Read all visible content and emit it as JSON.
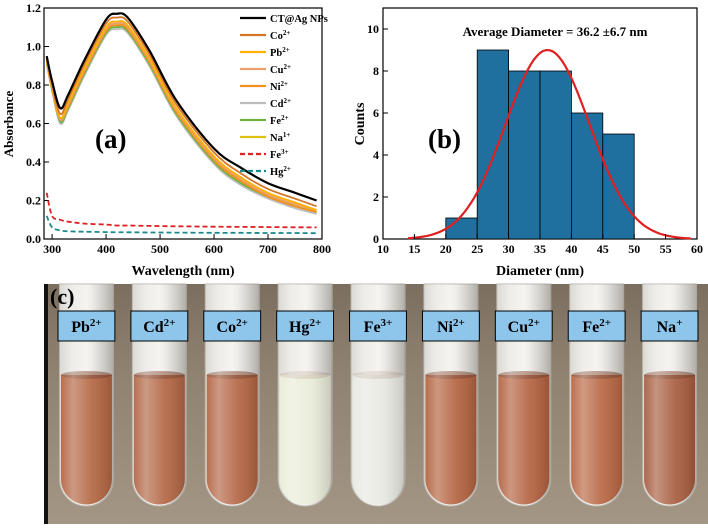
{
  "chart_data": [
    {
      "type": "line",
      "panel_label": "(a)",
      "xlabel": "Wavelength (nm)",
      "ylabel": "Absorbance",
      "xlim": [
        285,
        800
      ],
      "ylim": [
        0,
        1.2
      ],
      "x_ticks": [
        "300",
        "400",
        "500",
        "600",
        "700",
        "800"
      ],
      "y_ticks": [
        "0.0",
        "0.2",
        "0.4",
        "0.6",
        "0.8",
        "1.0",
        "1.2"
      ],
      "x": [
        290,
        300,
        315,
        330,
        360,
        400,
        420,
        440,
        480,
        530,
        600,
        650,
        700,
        750,
        790
      ],
      "series": [
        {
          "name": "CT@Ag NPs",
          "ion": "",
          "charge": "",
          "color": "#000000",
          "dash": false,
          "values": [
            0.95,
            0.82,
            0.68,
            0.75,
            0.93,
            1.14,
            1.17,
            1.15,
            0.98,
            0.72,
            0.47,
            0.37,
            0.29,
            0.24,
            0.2
          ]
        },
        {
          "name": "",
          "ion": "Co",
          "charge": "2+",
          "color": "#d4762a",
          "dash": false,
          "values": [
            0.94,
            0.8,
            0.65,
            0.73,
            0.91,
            1.12,
            1.15,
            1.13,
            0.96,
            0.7,
            0.45,
            0.34,
            0.26,
            0.21,
            0.17
          ]
        },
        {
          "name": "",
          "ion": "Pb",
          "charge": "2+",
          "color": "#ffb000",
          "dash": false,
          "values": [
            0.93,
            0.79,
            0.63,
            0.71,
            0.89,
            1.1,
            1.13,
            1.11,
            0.94,
            0.68,
            0.43,
            0.32,
            0.24,
            0.19,
            0.15
          ]
        },
        {
          "name": "",
          "ion": "Cu",
          "charge": "2+",
          "color": "#e9a06a",
          "dash": false,
          "values": [
            0.93,
            0.79,
            0.62,
            0.7,
            0.88,
            1.09,
            1.12,
            1.1,
            0.93,
            0.67,
            0.42,
            0.31,
            0.23,
            0.18,
            0.15
          ]
        },
        {
          "name": "",
          "ion": "Ni",
          "charge": "2+",
          "color": "#f09020",
          "dash": false,
          "values": [
            0.92,
            0.78,
            0.62,
            0.69,
            0.87,
            1.08,
            1.11,
            1.09,
            0.92,
            0.66,
            0.41,
            0.3,
            0.22,
            0.17,
            0.14
          ]
        },
        {
          "name": "",
          "ion": "Cd",
          "charge": "2+",
          "color": "#bdbdbd",
          "dash": false,
          "values": [
            0.91,
            0.77,
            0.6,
            0.67,
            0.85,
            1.06,
            1.09,
            1.07,
            0.9,
            0.64,
            0.39,
            0.28,
            0.21,
            0.16,
            0.13
          ]
        },
        {
          "name": "",
          "ion": "Fe",
          "charge": "2+",
          "color": "#6fb142",
          "dash": false,
          "values": [
            0.92,
            0.78,
            0.61,
            0.68,
            0.86,
            1.07,
            1.1,
            1.08,
            0.91,
            0.65,
            0.4,
            0.29,
            0.22,
            0.17,
            0.14
          ]
        },
        {
          "name": "",
          "ion": "Na",
          "charge": "1+",
          "color": "#e0c010",
          "dash": false,
          "values": [
            0.92,
            0.78,
            0.62,
            0.69,
            0.87,
            1.08,
            1.11,
            1.09,
            0.92,
            0.66,
            0.41,
            0.3,
            0.23,
            0.18,
            0.15
          ]
        },
        {
          "name": "",
          "ion": "Fe",
          "charge": "3+",
          "color": "#e02020",
          "dash": true,
          "values": [
            0.24,
            0.12,
            0.1,
            0.09,
            0.08,
            0.075,
            0.07,
            0.07,
            0.068,
            0.066,
            0.064,
            0.063,
            0.062,
            0.061,
            0.06
          ]
        },
        {
          "name": "",
          "ion": "Hg",
          "charge": "2+",
          "color": "#1a8a8a",
          "dash": true,
          "values": [
            0.12,
            0.06,
            0.045,
            0.04,
            0.038,
            0.036,
            0.035,
            0.035,
            0.034,
            0.033,
            0.032,
            0.032,
            0.031,
            0.031,
            0.03
          ]
        }
      ]
    },
    {
      "type": "bar",
      "panel_label": "(b)",
      "annotation": "Average Diameter = 36.2 ±6.7 nm",
      "xlabel": "Diameter (nm)",
      "ylabel": "Counts",
      "xlim": [
        10,
        60
      ],
      "ylim": [
        0,
        11
      ],
      "x_ticks": [
        "10",
        "15",
        "20",
        "25",
        "30",
        "35",
        "40",
        "45",
        "50",
        "55",
        "60"
      ],
      "y_ticks": [
        "0",
        "2",
        "4",
        "6",
        "8",
        "10"
      ],
      "bins": [
        [
          20,
          25
        ],
        [
          25,
          30
        ],
        [
          30,
          35
        ],
        [
          35,
          40
        ],
        [
          40,
          45
        ],
        [
          45,
          50
        ]
      ],
      "values": [
        1,
        9,
        8,
        8,
        6,
        5
      ],
      "bar_color": "#1f6f9f",
      "fit": {
        "type": "gaussian",
        "mean": 36.2,
        "sd": 6.7,
        "peak": 9,
        "color": "#e02020"
      }
    }
  ],
  "photo": {
    "panel_label": "(c)",
    "tubes": [
      {
        "ion": "Pb",
        "charge": "2+",
        "liquid": "#b2633f"
      },
      {
        "ion": "Cd",
        "charge": "2+",
        "liquid": "#b16340"
      },
      {
        "ion": "Co",
        "charge": "2+",
        "liquid": "#b26240"
      },
      {
        "ion": "Hg",
        "charge": "2+",
        "liquid": "#e9ecd8"
      },
      {
        "ion": "Fe",
        "charge": "3+",
        "liquid": "#e6e8e0"
      },
      {
        "ion": "Ni",
        "charge": "2+",
        "liquid": "#b2603c"
      },
      {
        "ion": "Cu",
        "charge": "2+",
        "liquid": "#b25f3c"
      },
      {
        "ion": "Fe",
        "charge": "2+",
        "liquid": "#b7643f"
      },
      {
        "ion": "Na",
        "charge": "+",
        "liquid": "#a65a3c"
      }
    ]
  }
}
